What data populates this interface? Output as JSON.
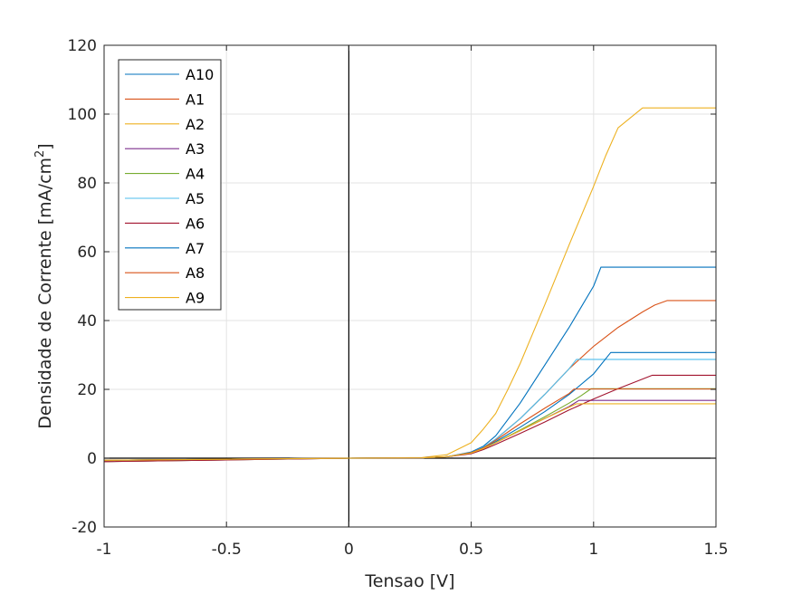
{
  "chart_data": {
    "type": "line",
    "xlabel": "Tensao [V]",
    "ylabel_main": "Densidade de Corrente [mA/cm",
    "ylabel_sup": "2",
    "ylabel_end": "]",
    "xlim": [
      -1,
      1.5
    ],
    "ylim": [
      -20,
      120
    ],
    "xticks": [
      -1,
      -0.5,
      0,
      0.5,
      1,
      1.5
    ],
    "xtick_labels": [
      "-1",
      "-0.5",
      "0",
      "0.5",
      "1",
      "1.5"
    ],
    "yticks": [
      -20,
      0,
      20,
      40,
      60,
      80,
      100,
      120
    ],
    "ytick_labels": [
      "-20",
      "0",
      "20",
      "40",
      "60",
      "80",
      "100",
      "120"
    ],
    "grid": true,
    "legend_position": "top-left",
    "series": [
      {
        "name": "A10",
        "color": "#0072BD",
        "x": [
          -1,
          -0.5,
          0,
          0.3,
          0.4,
          0.5,
          0.55,
          0.6,
          0.7,
          0.8,
          0.9,
          0.95,
          1.0,
          1.03,
          1.5
        ],
        "y": [
          -1.0,
          -0.5,
          0,
          0.1,
          0.4,
          1.8,
          3.5,
          6.5,
          16,
          27,
          38,
          44,
          50,
          55.5,
          55.5
        ]
      },
      {
        "name": "A1",
        "color": "#D95319",
        "x": [
          -1,
          -0.5,
          0,
          0.3,
          0.4,
          0.5,
          0.55,
          0.6,
          0.7,
          0.8,
          0.9,
          1.0,
          1.1,
          1.2,
          1.25,
          1.3,
          1.5
        ],
        "y": [
          -1.0,
          -0.5,
          0,
          0.1,
          0.4,
          1.6,
          3.0,
          5.5,
          11.5,
          18.5,
          26,
          32.5,
          38,
          42.5,
          44.5,
          45.8,
          45.8
        ]
      },
      {
        "name": "A2",
        "color": "#EDB120",
        "x": [
          -1,
          -0.5,
          0,
          0.3,
          0.4,
          0.5,
          0.55,
          0.6,
          0.65,
          0.7,
          0.75,
          0.8,
          0.9,
          1.0,
          1.05,
          1.1,
          1.2,
          1.5
        ],
        "y": [
          -0.6,
          -0.3,
          0,
          0.2,
          1.0,
          4.5,
          8.5,
          13,
          20,
          27.5,
          36,
          44.5,
          62,
          79,
          88,
          96,
          101.8,
          101.8
        ]
      },
      {
        "name": "A3",
        "color": "#7E2F8E",
        "x": [
          -1,
          -0.5,
          0,
          0.3,
          0.4,
          0.5,
          0.55,
          0.6,
          0.7,
          0.8,
          0.9,
          0.94,
          1.5
        ],
        "y": [
          -0.6,
          -0.3,
          0,
          0.1,
          0.4,
          1.5,
          2.8,
          4.5,
          8,
          11.5,
          15,
          16.8,
          16.8
        ]
      },
      {
        "name": "A4",
        "color": "#77AC30",
        "x": [
          -1,
          -0.5,
          0,
          0.3,
          0.4,
          0.5,
          0.55,
          0.6,
          0.7,
          0.8,
          0.9,
          0.95,
          0.99,
          1.5
        ],
        "y": [
          -0.6,
          -0.3,
          0,
          0.1,
          0.4,
          1.5,
          2.8,
          4.5,
          8.2,
          12,
          16,
          18.2,
          20.2,
          20.2
        ]
      },
      {
        "name": "A5",
        "color": "#4DBEEE",
        "x": [
          -1,
          -0.5,
          0,
          0.3,
          0.4,
          0.5,
          0.55,
          0.6,
          0.7,
          0.8,
          0.9,
          0.93,
          1.5
        ],
        "y": [
          -0.6,
          -0.3,
          0,
          0.1,
          0.4,
          1.6,
          3.2,
          5.5,
          11.5,
          18.5,
          26,
          28.7,
          28.7
        ]
      },
      {
        "name": "A6",
        "color": "#A2142F",
        "x": [
          -1,
          -0.5,
          0,
          0.3,
          0.4,
          0.5,
          0.55,
          0.6,
          0.7,
          0.8,
          0.9,
          1.0,
          1.1,
          1.2,
          1.24,
          1.5
        ],
        "y": [
          -1.0,
          -0.5,
          0,
          0.1,
          0.4,
          1.3,
          2.5,
          4,
          7.2,
          10.5,
          14,
          17.2,
          20.2,
          23,
          24.1,
          24.1
        ]
      },
      {
        "name": "A7",
        "color": "#0072BD",
        "x": [
          -1,
          -0.5,
          0,
          0.3,
          0.4,
          0.5,
          0.55,
          0.6,
          0.7,
          0.8,
          0.9,
          1.0,
          1.07,
          1.5
        ],
        "y": [
          -0.6,
          -0.3,
          0,
          0.1,
          0.4,
          1.6,
          3.0,
          4.8,
          9,
          13.5,
          18.5,
          24.5,
          30.7,
          30.7
        ]
      },
      {
        "name": "A8",
        "color": "#D95319",
        "x": [
          -1,
          -0.5,
          0,
          0.3,
          0.4,
          0.5,
          0.55,
          0.6,
          0.7,
          0.8,
          0.9,
          0.92,
          1.5
        ],
        "y": [
          -0.6,
          -0.3,
          0,
          0.1,
          0.4,
          1.6,
          3.0,
          5.2,
          10,
          14.5,
          18.8,
          20.1,
          20.1
        ]
      },
      {
        "name": "A9",
        "color": "#EDB120",
        "x": [
          -1,
          -0.5,
          0,
          0.3,
          0.4,
          0.5,
          0.55,
          0.6,
          0.7,
          0.8,
          0.9,
          0.93,
          1.5
        ],
        "y": [
          -0.6,
          -0.3,
          0,
          0.1,
          0.4,
          1.5,
          2.8,
          4.5,
          8,
          11.5,
          14.8,
          15.8,
          15.8
        ]
      }
    ]
  }
}
